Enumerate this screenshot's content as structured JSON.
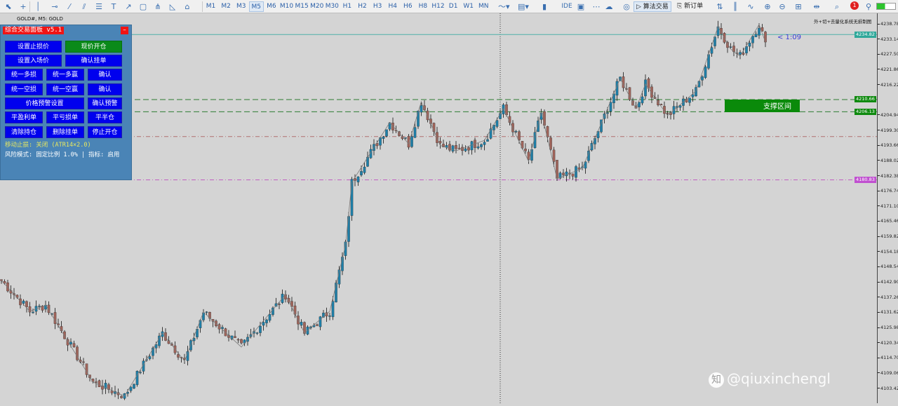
{
  "toolbar": {
    "tools": [
      "pointer-icon",
      "crosshair-icon",
      "vertical-line-icon",
      "horizontal-line-icon",
      "trendline-icon",
      "parallel-channel-icon",
      "fibonacci-icon",
      "text-icon",
      "arrow-icon",
      "rectangle-icon",
      "pitchfork-icon",
      "triangle-icon",
      "shapes-menu-icon"
    ],
    "timeframes": [
      "M1",
      "M2",
      "M3",
      "M5",
      "M6",
      "M10",
      "M15",
      "M20",
      "M30",
      "H1",
      "H2",
      "H3",
      "H4",
      "H6",
      "H8",
      "H12",
      "D1",
      "W1",
      "MN"
    ],
    "selected_timeframe": "M5",
    "ide_label": "IDE",
    "algo_trading_label": "算法交易",
    "new_order_label": "新订单",
    "notification_count": "1"
  },
  "chart": {
    "title": "GOLD#, M5: GOLD",
    "system_label": "外+切+去量化系统无损制图",
    "rr_label": "< 1:09",
    "zone_label": "支撑区间",
    "watermark": "@qiuxinchengl",
    "price_ticks": [
      "4238.78",
      "4233.14",
      "4227.50",
      "4221.86",
      "4216.22",
      "4204.94",
      "4199.30",
      "4193.66",
      "4188.02",
      "4182.38",
      "4176.74",
      "4171.10",
      "4165.46",
      "4159.82",
      "4154.18",
      "4148.54",
      "4142.90",
      "4137.26",
      "4131.62",
      "4125.98",
      "4120.34",
      "4114.70",
      "4109.06",
      "4103.42"
    ],
    "price_badges": [
      {
        "price": "4234.82",
        "color": "#2fa89a"
      },
      {
        "price": "4210.66",
        "color": "#0f8a0f"
      },
      {
        "price": "4206.13",
        "color": "#0f8a0f"
      },
      {
        "price": "4180.83",
        "color": "#c050d0"
      }
    ],
    "levels": [
      {
        "price": 4234.82,
        "color": "#4fb0a8",
        "style": "solid"
      },
      {
        "price": 4210.66,
        "color": "#2e7d32",
        "style": "dash"
      },
      {
        "price": 4206.13,
        "color": "#2e7d32",
        "style": "dash"
      },
      {
        "price": 4196.9,
        "color": "#b07070",
        "style": "dashdot"
      },
      {
        "price": 4180.83,
        "color": "#c060c0",
        "style": "dashdot"
      }
    ],
    "colors": {
      "bull": "#1f7fa8",
      "bear": "#a0645a",
      "wick": "#111111",
      "zigzag": "#7a7a7a"
    },
    "price_path": [
      [
        0,
        4143.4
      ],
      [
        9,
        4132.0
      ],
      [
        14,
        4134.3
      ],
      [
        29,
        4105.7
      ],
      [
        39,
        4100.5
      ],
      [
        51,
        4123.9
      ],
      [
        58,
        4113.5
      ],
      [
        64,
        4131.7
      ],
      [
        76,
        4118.7
      ],
      [
        90,
        4138.2
      ],
      [
        96,
        4123.9
      ],
      [
        104,
        4132.0
      ],
      [
        109,
        4156.5
      ],
      [
        111,
        4179.9
      ],
      [
        123,
        4202.1
      ],
      [
        129,
        4194.2
      ],
      [
        133,
        4209.9
      ],
      [
        139,
        4193.6
      ],
      [
        144,
        4191.6
      ],
      [
        153,
        4195.5
      ],
      [
        159,
        4207.3
      ],
      [
        167,
        4187.7
      ],
      [
        171,
        4206.0
      ],
      [
        176,
        4181.2
      ],
      [
        184,
        4185.1
      ],
      [
        196,
        4218.5
      ],
      [
        201,
        4207.3
      ],
      [
        204,
        4216.4
      ],
      [
        211,
        4204.7
      ],
      [
        220,
        4213.8
      ],
      [
        227,
        4237.7
      ],
      [
        231,
        4229.4
      ],
      [
        234,
        4226.8
      ],
      [
        240,
        4238.5
      ],
      [
        242,
        4232.0
      ]
    ]
  },
  "panel": {
    "title": "综合交易面板 v5.1",
    "close_label": "–",
    "buttons": [
      [
        "设置止损价",
        "现价开仓"
      ],
      [
        "设置入场价",
        "确认挂单"
      ],
      [
        "统一多损",
        "统一多赢",
        "确认"
      ],
      [
        "统一空损",
        "统一空赢",
        "确认"
      ],
      [
        "价格预警设置",
        "确认预警"
      ],
      [
        "平盈利单",
        "平亏损单",
        "平半仓"
      ],
      [
        "清除持仓",
        "删除挂单",
        "停止开仓"
      ]
    ],
    "trailing_stop": "移动止损: 关闭 (ATR14×2.0)",
    "risk_mode": "风险模式: 固定比例 1.0% | 指标: 启用"
  }
}
